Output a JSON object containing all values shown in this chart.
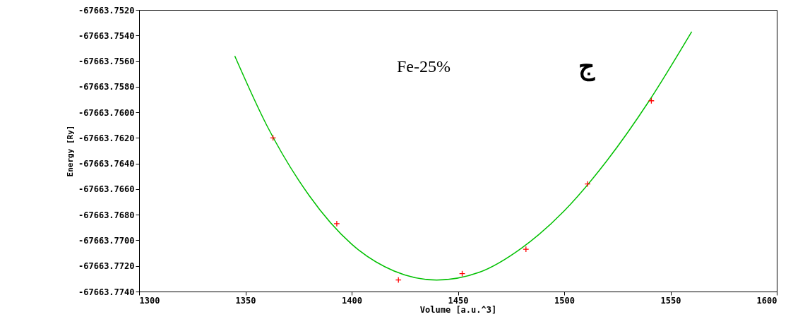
{
  "chart_data": {
    "type": "scatter",
    "xlabel": "Volume [a.u.^3]",
    "ylabel": "Energy [Ry]",
    "annotations": [
      "Fe-25%",
      "ج"
    ],
    "series": [
      {
        "type": "line",
        "color": "#00c000",
        "x": [
          1345,
          1360,
          1380,
          1400,
          1420,
          1440,
          1460,
          1480,
          1500,
          1520,
          1540,
          1560
        ],
        "values": [
          -67663.7556,
          -67663.761,
          -67663.7665,
          -67663.7703,
          -67663.7724,
          -67663.7731,
          -67663.7725,
          -67663.7706,
          -67663.7677,
          -67663.7638,
          -67663.7591,
          -67663.7537
        ]
      },
      {
        "color": "#ff0000",
        "marker": "cross",
        "x": [
          1363,
          1393,
          1422,
          1452,
          1482,
          1511,
          1541
        ],
        "values": [
          -67663.762,
          -67663.7687,
          -67663.7731,
          -67663.7726,
          -67663.7707,
          -67663.7656,
          -67663.7591
        ]
      }
    ],
    "xlim": [
      1300,
      1600
    ],
    "xticks": [
      1300,
      1350,
      1400,
      1450,
      1500,
      1550,
      1600
    ],
    "ylim": [
      -67663.774,
      -67663.752
    ],
    "yticks": [
      {
        "value": -67663.774,
        "label": "-67663.7740"
      },
      {
        "value": -67663.772,
        "label": "-67663.7720"
      },
      {
        "value": -67663.77,
        "label": "-67663.7700"
      },
      {
        "value": -67663.768,
        "label": "-67663.7680"
      },
      {
        "value": -67663.766,
        "label": "-67663.7660"
      },
      {
        "value": -67663.764,
        "label": "-67663.7640"
      },
      {
        "value": -67663.762,
        "label": "-67663.7620"
      },
      {
        "value": -67663.76,
        "label": "-67663.7600"
      },
      {
        "value": -67663.758,
        "label": "-67663.7580"
      },
      {
        "value": -67663.756,
        "label": "-67663.7560"
      },
      {
        "value": -67663.754,
        "label": "-67663.7540"
      },
      {
        "value": -67663.752,
        "label": "-67663.7520"
      }
    ],
    "grid": false
  }
}
